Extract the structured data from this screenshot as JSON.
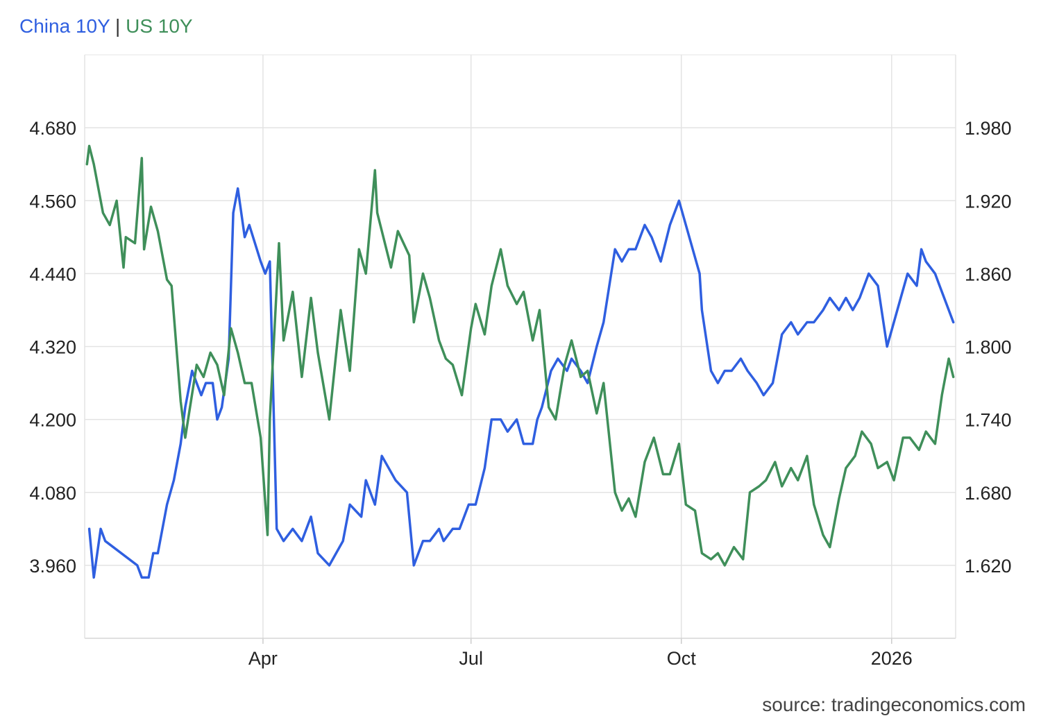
{
  "chart_data": {
    "type": "line",
    "title": "",
    "legend": {
      "placement": "top-left",
      "separator": "|",
      "entries": [
        {
          "name": "China 10Y",
          "color": "#2f5fe0"
        },
        {
          "name": "US 10Y",
          "color": "#3f8f5a"
        }
      ]
    },
    "source": "source: tradingeconomics.com",
    "grid": true,
    "x_axis": {
      "type": "date",
      "range": [
        "2025-01-13",
        "2026-01-29"
      ],
      "ticks": [
        {
          "date": "2025-04-01",
          "label": "Apr"
        },
        {
          "date": "2025-07-01",
          "label": "Jul"
        },
        {
          "date": "2025-10-01",
          "label": "Oct"
        },
        {
          "date": "2026-01-01",
          "label": "2026"
        }
      ]
    },
    "y_left": {
      "series": "US 10Y",
      "range": [
        3.84,
        4.8
      ],
      "ticks": [
        3.96,
        4.08,
        4.2,
        4.32,
        4.44,
        4.56,
        4.68
      ],
      "tick_labels": [
        "3.960",
        "4.080",
        "4.200",
        "4.320",
        "4.440",
        "4.560",
        "4.680"
      ]
    },
    "y_right": {
      "series": "China 10Y",
      "range": [
        1.56,
        2.04
      ],
      "ticks": [
        1.62,
        1.68,
        1.74,
        1.8,
        1.86,
        1.92,
        1.98
      ],
      "tick_labels": [
        "1.620",
        "1.680",
        "1.740",
        "1.800",
        "1.860",
        "1.920",
        "1.980"
      ]
    },
    "series": [
      {
        "name": "China 10Y",
        "color": "#2f5fe0",
        "axis": "right",
        "x": [
          "2025-01-15",
          "2025-01-17",
          "2025-01-20",
          "2025-01-22",
          "2025-02-05",
          "2025-02-07",
          "2025-02-10",
          "2025-02-12",
          "2025-02-14",
          "2025-02-18",
          "2025-02-21",
          "2025-02-24",
          "2025-02-26",
          "2025-03-01",
          "2025-03-03",
          "2025-03-05",
          "2025-03-07",
          "2025-03-10",
          "2025-03-12",
          "2025-03-14",
          "2025-03-17",
          "2025-03-19",
          "2025-03-21",
          "2025-03-24",
          "2025-03-26",
          "2025-03-31",
          "2025-04-02",
          "2025-04-04",
          "2025-04-07",
          "2025-04-10",
          "2025-04-14",
          "2025-04-18",
          "2025-04-22",
          "2025-04-25",
          "2025-04-30",
          "2025-05-06",
          "2025-05-09",
          "2025-05-14",
          "2025-05-16",
          "2025-05-20",
          "2025-05-23",
          "2025-05-26",
          "2025-05-29",
          "2025-06-03",
          "2025-06-06",
          "2025-06-10",
          "2025-06-13",
          "2025-06-17",
          "2025-06-19",
          "2025-06-23",
          "2025-06-26",
          "2025-06-30",
          "2025-07-03",
          "2025-07-07",
          "2025-07-10",
          "2025-07-14",
          "2025-07-17",
          "2025-07-21",
          "2025-07-24",
          "2025-07-28",
          "2025-07-30",
          "2025-08-01",
          "2025-08-05",
          "2025-08-08",
          "2025-08-12",
          "2025-08-14",
          "2025-08-18",
          "2025-08-21",
          "2025-08-25",
          "2025-08-28",
          "2025-09-02",
          "2025-09-05",
          "2025-09-08",
          "2025-09-11",
          "2025-09-15",
          "2025-09-18",
          "2025-09-22",
          "2025-09-26",
          "2025-09-30",
          "2025-10-09",
          "2025-10-10",
          "2025-10-14",
          "2025-10-17",
          "2025-10-20",
          "2025-10-23",
          "2025-10-27",
          "2025-10-30",
          "2025-11-03",
          "2025-11-06",
          "2025-11-10",
          "2025-11-14",
          "2025-11-18",
          "2025-11-21",
          "2025-11-25",
          "2025-11-28",
          "2025-12-02",
          "2025-12-05",
          "2025-12-09",
          "2025-12-12",
          "2025-12-15",
          "2025-12-18",
          "2025-12-22",
          "2025-12-26",
          "2025-12-30",
          "2026-01-05",
          "2026-01-08",
          "2026-01-12",
          "2026-01-14",
          "2026-01-16",
          "2026-01-20",
          "2026-01-22",
          "2026-01-26",
          "2026-01-28"
        ],
        "values": [
          1.65,
          1.61,
          1.65,
          1.64,
          1.62,
          1.61,
          1.61,
          1.63,
          1.63,
          1.67,
          1.69,
          1.72,
          1.75,
          1.78,
          1.77,
          1.76,
          1.77,
          1.77,
          1.74,
          1.75,
          1.79,
          1.91,
          1.93,
          1.89,
          1.9,
          1.87,
          1.86,
          1.87,
          1.65,
          1.64,
          1.65,
          1.64,
          1.66,
          1.63,
          1.62,
          1.64,
          1.67,
          1.66,
          1.69,
          1.67,
          1.71,
          1.7,
          1.69,
          1.68,
          1.62,
          1.64,
          1.64,
          1.65,
          1.64,
          1.65,
          1.65,
          1.67,
          1.67,
          1.7,
          1.74,
          1.74,
          1.73,
          1.74,
          1.72,
          1.72,
          1.74,
          1.75,
          1.78,
          1.79,
          1.78,
          1.79,
          1.78,
          1.77,
          1.8,
          1.82,
          1.88,
          1.87,
          1.88,
          1.88,
          1.9,
          1.89,
          1.87,
          1.9,
          1.92,
          1.86,
          1.83,
          1.78,
          1.77,
          1.78,
          1.78,
          1.79,
          1.78,
          1.77,
          1.76,
          1.77,
          1.81,
          1.82,
          1.81,
          1.82,
          1.82,
          1.83,
          1.84,
          1.83,
          1.84,
          1.83,
          1.84,
          1.86,
          1.85,
          1.8,
          1.84,
          1.86,
          1.85,
          1.88,
          1.87,
          1.86,
          1.85,
          1.83,
          1.82
        ]
      },
      {
        "name": "US 10Y",
        "color": "#3f8f5a",
        "axis": "left",
        "x": [
          "2025-01-14",
          "2025-01-15",
          "2025-01-17",
          "2025-01-21",
          "2025-01-24",
          "2025-01-27",
          "2025-01-30",
          "2025-01-31",
          "2025-02-04",
          "2025-02-07",
          "2025-02-08",
          "2025-02-11",
          "2025-02-14",
          "2025-02-18",
          "2025-02-20",
          "2025-02-24",
          "2025-02-26",
          "2025-03-03",
          "2025-03-06",
          "2025-03-09",
          "2025-03-12",
          "2025-03-15",
          "2025-03-18",
          "2025-03-21",
          "2025-03-24",
          "2025-03-27",
          "2025-03-31",
          "2025-04-03",
          "2025-04-04",
          "2025-04-08",
          "2025-04-10",
          "2025-04-14",
          "2025-04-18",
          "2025-04-22",
          "2025-04-25",
          "2025-04-30",
          "2025-05-05",
          "2025-05-09",
          "2025-05-13",
          "2025-05-16",
          "2025-05-20",
          "2025-05-21",
          "2025-05-23",
          "2025-05-27",
          "2025-05-30",
          "2025-06-04",
          "2025-06-06",
          "2025-06-10",
          "2025-06-13",
          "2025-06-17",
          "2025-06-20",
          "2025-06-23",
          "2025-06-27",
          "2025-07-01",
          "2025-07-03",
          "2025-07-07",
          "2025-07-10",
          "2025-07-14",
          "2025-07-17",
          "2025-07-21",
          "2025-07-24",
          "2025-07-28",
          "2025-07-31",
          "2025-08-04",
          "2025-08-07",
          "2025-08-11",
          "2025-08-14",
          "2025-08-18",
          "2025-08-21",
          "2025-08-25",
          "2025-08-28",
          "2025-09-02",
          "2025-09-05",
          "2025-09-08",
          "2025-09-11",
          "2025-09-15",
          "2025-09-19",
          "2025-09-23",
          "2025-09-26",
          "2025-09-30",
          "2025-10-03",
          "2025-10-07",
          "2025-10-10",
          "2025-10-14",
          "2025-10-17",
          "2025-10-20",
          "2025-10-24",
          "2025-10-28",
          "2025-10-31",
          "2025-11-04",
          "2025-11-07",
          "2025-11-11",
          "2025-11-14",
          "2025-11-18",
          "2025-11-21",
          "2025-11-25",
          "2025-11-28",
          "2025-12-02",
          "2025-12-05",
          "2025-12-09",
          "2025-12-12",
          "2025-12-16",
          "2025-12-19",
          "2025-12-23",
          "2025-12-26",
          "2025-12-30",
          "2026-01-02",
          "2026-01-06",
          "2026-01-09",
          "2026-01-13",
          "2026-01-16",
          "2026-01-20",
          "2026-01-23",
          "2026-01-26",
          "2026-01-28"
        ],
        "values": [
          4.62,
          4.65,
          4.62,
          4.54,
          4.52,
          4.56,
          4.45,
          4.5,
          4.49,
          4.63,
          4.48,
          4.55,
          4.51,
          4.43,
          4.42,
          4.23,
          4.17,
          4.29,
          4.27,
          4.31,
          4.29,
          4.24,
          4.35,
          4.31,
          4.26,
          4.26,
          4.17,
          4.01,
          4.2,
          4.49,
          4.33,
          4.41,
          4.27,
          4.4,
          4.31,
          4.2,
          4.38,
          4.28,
          4.48,
          4.44,
          4.61,
          4.54,
          4.51,
          4.45,
          4.51,
          4.47,
          4.36,
          4.44,
          4.4,
          4.33,
          4.3,
          4.29,
          4.24,
          4.35,
          4.39,
          4.34,
          4.42,
          4.48,
          4.42,
          4.39,
          4.41,
          4.33,
          4.38,
          4.22,
          4.2,
          4.29,
          4.33,
          4.27,
          4.28,
          4.21,
          4.26,
          4.08,
          4.05,
          4.07,
          4.04,
          4.13,
          4.17,
          4.11,
          4.11,
          4.16,
          4.06,
          4.05,
          3.98,
          3.97,
          3.98,
          3.96,
          3.99,
          3.97,
          4.08,
          4.09,
          4.1,
          4.13,
          4.09,
          4.12,
          4.1,
          4.14,
          4.06,
          4.01,
          3.99,
          4.07,
          4.12,
          4.14,
          4.18,
          4.16,
          4.12,
          4.13,
          4.1,
          4.17,
          4.17,
          4.15,
          4.18,
          4.16,
          4.24,
          4.3,
          4.27
        ]
      }
    ]
  }
}
